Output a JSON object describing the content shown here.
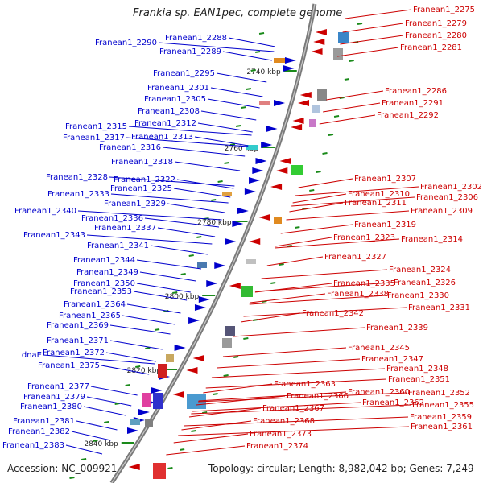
{
  "title": "Frankia sp. EAN1pec, complete genome",
  "footer": {
    "accession": "Accession: NC_009921",
    "topology": "Topology: circular; Length: 8,982,042 bp; Genes: 7,249"
  },
  "colors": {
    "plus_strand": "#0000cc",
    "minus_strand": "#cc0000",
    "backbone": "#7a7a7a",
    "tick_mark": "#1a8a1a"
  },
  "scale_labels": [
    "2740 kbp",
    "2760 kbp",
    "2780 kbp",
    "2800 kbp",
    "2820 kbp",
    "2840 kbp"
  ],
  "left_genes": [
    "Franean1_2290",
    "Franean1_2288",
    "Franean1_2289",
    "Franean1_2295",
    "Franean1_2301",
    "Franean1_2305",
    "Franean1_2308",
    "Franean1_2312",
    "Franean1_2315",
    "Franean1_2313",
    "Franean1_2317",
    "Franean1_2316",
    "Franean1_2318",
    "Franean1_2328",
    "Franean1_2322",
    "Franean1_2325",
    "Franean1_2333",
    "Franean1_2329",
    "Franean1_2340",
    "Franean1_2336",
    "Franean1_2337",
    "Franean1_2343",
    "Franean1_2341",
    "Franean1_2344",
    "Franean1_2349",
    "Franean1_2350",
    "Franean1_2353",
    "Franean1_2364",
    "Franean1_2365",
    "Franean1_2369",
    "Franean1_2371",
    "Franean1_2372",
    "dnaE",
    "Franean1_2375",
    "Franean1_2377",
    "Franean1_2379",
    "Franean1_2380",
    "Franean1_2381",
    "Franean1_2382",
    "Franean1_2383"
  ],
  "right_genes": [
    "Franean1_2275",
    "Franean1_2279",
    "Franean1_2280",
    "Franean1_2281",
    "Franean1_2286",
    "Franean1_2291",
    "Franean1_2292",
    "Franean1_2307",
    "Franean1_2302",
    "Franean1_2310",
    "Franean1_2306",
    "Franean1_2311",
    "Franean1_2309",
    "Franean1_2319",
    "Franean1_2323",
    "Franean1_2314",
    "Franean1_2327",
    "Franean1_2324",
    "Franean1_2326",
    "Franean1_2335",
    "Franean1_2338",
    "Franean1_2330",
    "Franean1_2331",
    "Franean1_2342",
    "Franean1_2339",
    "Franean1_2345",
    "Franean1_2347",
    "Franean1_2348",
    "Franean1_2351",
    "Franean1_2363",
    "Franean1_2360",
    "Franean1_2352",
    "Franean1_2366",
    "Franean1_2362",
    "Franean1_2355",
    "Franean1_2367",
    "Franean1_2359",
    "Franean1_2368",
    "Franean1_2361",
    "Franean1_2373",
    "Franean1_2374"
  ]
}
